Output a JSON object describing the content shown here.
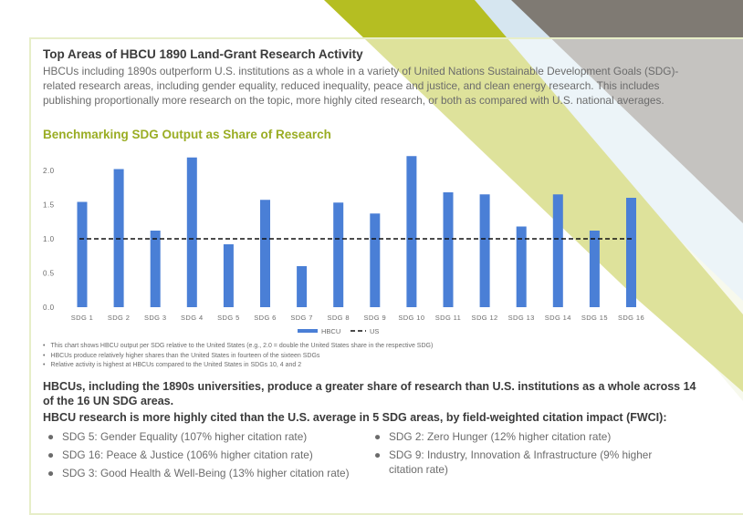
{
  "colors": {
    "bar": "#4a7fd6",
    "baseline": "#111111",
    "title": "#3a3a3a",
    "accent": "#9aad24",
    "stripe_gray": "#7f7a73",
    "stripe_green": "#b5be22",
    "stripe_blue": "#d6e6f0",
    "stripe_cream": "#eef1d8"
  },
  "header": {
    "title": "Top Areas of HBCU 1890 Land-Grant Research Activity",
    "intro": "HBCUs including 1890s outperform U.S. institutions as a whole in a variety of United Nations Sustainable Development Goals (SDG)-related research areas, including gender equality, reduced inequality, peace and justice, and clean energy research. This includes publishing proportionally more research on the topic, more highly cited research, or both as compared with U.S. national averages.",
    "chart_heading": "Benchmarking SDG Output as Share of Research"
  },
  "chart_data": {
    "type": "bar",
    "title": "Benchmarking SDG Output as Share of Research",
    "categories": [
      "SDG 1",
      "SDG 2",
      "SDG 3",
      "SDG 4",
      "SDG 5",
      "SDG 6",
      "SDG 7",
      "SDG 8",
      "SDG 9",
      "SDG 10",
      "SDG 11",
      "SDG 12",
      "SDG 13",
      "SDG 14",
      "SDG 15",
      "SDG 16"
    ],
    "series": [
      {
        "name": "HBCU",
        "style": "bar",
        "values": [
          1.54,
          2.02,
          1.12,
          2.19,
          0.92,
          1.57,
          0.6,
          1.53,
          1.37,
          2.21,
          1.68,
          1.65,
          1.18,
          1.65,
          1.12,
          1.6
        ]
      },
      {
        "name": "US",
        "style": "dashed-line",
        "values": [
          1.0,
          1.0,
          1.0,
          1.0,
          1.0,
          1.0,
          1.0,
          1.0,
          1.0,
          1.0,
          1.0,
          1.0,
          1.0,
          1.0,
          1.0,
          1.0
        ]
      }
    ],
    "y_ticks": [
      "0.0",
      "0.5",
      "1.0",
      "1.5",
      "2.0"
    ],
    "ylim": [
      0,
      2.3
    ],
    "xlabel": "",
    "ylabel": "",
    "grid": false,
    "legend": "bottom-center"
  },
  "notes": [
    "This chart shows HBCU output per SDG relative to the United States (e.g., 2.0 = double the United States share in the respective SDG)",
    "HBCUs produce relatively higher shares than the United States in fourteen of the sixteen SDGs",
    "Relative activity is highest at HBCUs compared to the United States in SDGs 10, 4 and 2"
  ],
  "findings": {
    "headline": "HBCUs, including the 1890s universities, produce a greater share of research than U.S. institutions as a whole across 14 of the 16 UN SDG areas.",
    "citation_headline": "HBCU research is more highly cited than the U.S. average in 5 SDG areas, by field-weighted citation impact (FWCI):",
    "bullet_glyph": "●",
    "left_items": [
      "SDG 5: Gender Equality (107% higher citation rate)",
      "SDG 16: Peace & Justice (106% higher citation rate)",
      "SDG 3: Good Health & Well-Being (13% higher citation rate)"
    ],
    "right_items": [
      "SDG 2: Zero Hunger (12% higher citation rate)",
      "SDG 9: Industry, Innovation & Infrastructure (9% higher citation rate)"
    ]
  }
}
